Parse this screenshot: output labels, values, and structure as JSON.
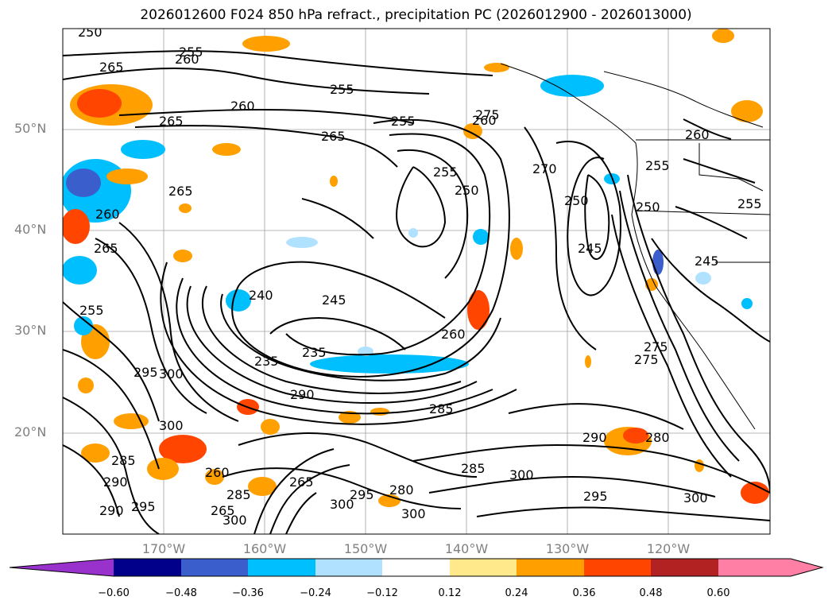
{
  "title": "2026012600 F024 850 hPa refract., precipitation PC (2026012900 - 2026013000)",
  "map": {
    "lat_labels": [
      "50°N",
      "40°N",
      "30°N",
      "20°N"
    ],
    "lon_labels": [
      "170°W",
      "160°W",
      "150°W",
      "140°W",
      "130°W",
      "120°W"
    ],
    "contour_labels": [
      "250",
      "255",
      "260",
      "265",
      "265",
      "255",
      "260",
      "255",
      "260",
      "265",
      "265",
      "260",
      "275",
      "255",
      "250",
      "270",
      "250",
      "245",
      "255",
      "250",
      "260",
      "255",
      "245",
      "240",
      "245",
      "265",
      "255",
      "260",
      "235",
      "235",
      "290",
      "285",
      "275",
      "275",
      "295",
      "300",
      "300",
      "290",
      "280",
      "285",
      "290",
      "285",
      "290",
      "295",
      "300",
      "265",
      "260",
      "265",
      "295",
      "280",
      "300",
      "300",
      "285",
      "300",
      "295",
      "300"
    ],
    "colors": {
      "contour": "#000000",
      "grid": "#a0a0a0",
      "coastline": "#000000",
      "precip_pos_1": "#ffe98a",
      "precip_pos_2": "#ff9f00",
      "precip_pos_3": "#ff4500",
      "precip_neg_1": "#aee1ff",
      "precip_neg_2": "#00bfff"
    }
  },
  "colorbar": {
    "ticks": [
      "−0.60",
      "−0.48",
      "−0.36",
      "−0.24",
      "−0.12",
      "0.12",
      "0.24",
      "0.36",
      "0.48",
      "0.60"
    ],
    "colors": [
      "#9932cc",
      "#00008b",
      "#3a5fcd",
      "#00bfff",
      "#b0e2ff",
      "#ffffff",
      "#ffe98a",
      "#ff9f00",
      "#ff4500",
      "#b22222",
      "#ff80a4",
      "#ff80a4"
    ]
  }
}
